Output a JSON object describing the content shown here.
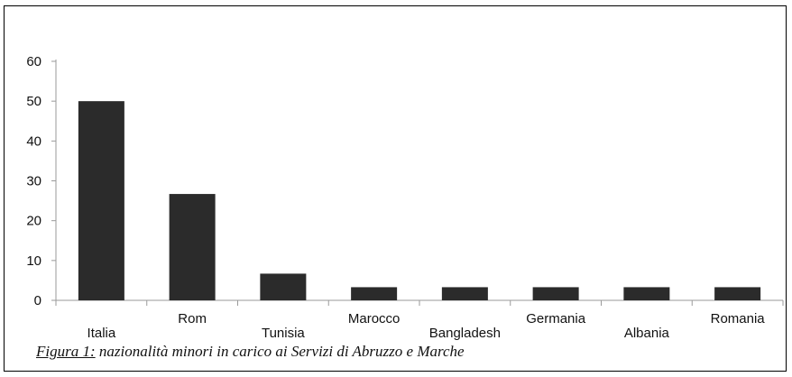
{
  "caption": {
    "prefix": "Figura 1:",
    "text": " nazionalità minori in carico ai Servizi di Abruzzo e Marche"
  },
  "colors": {
    "bar": "#2b2b2b",
    "axis": "#9a9a9a",
    "frame": "#000000"
  },
  "chart_data": {
    "type": "bar",
    "title": "",
    "xlabel": "",
    "ylabel": "",
    "categories": [
      "Italia",
      "Rom",
      "Tunisia",
      "Marocco",
      "Bangladesh",
      "Germania",
      "Albania",
      "Romania"
    ],
    "values": [
      50,
      26.7,
      6.7,
      3.3,
      3.3,
      3.3,
      3.3,
      3.3
    ],
    "ylim": [
      0,
      60
    ],
    "yticks": [
      0,
      10,
      20,
      30,
      40,
      50,
      60
    ],
    "grid": false,
    "legend": "none"
  }
}
